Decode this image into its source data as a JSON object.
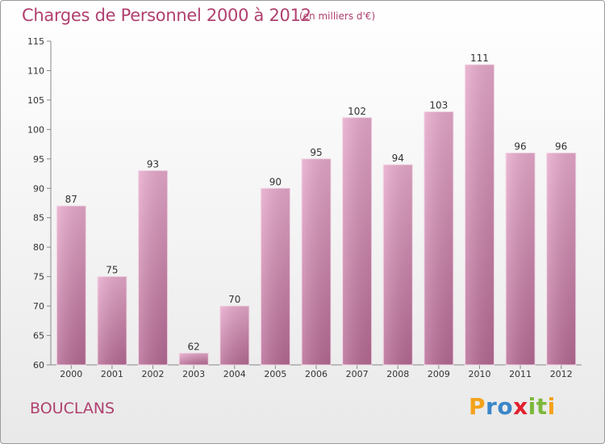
{
  "chart_data": {
    "type": "bar",
    "title": "Charges de Personnel 2000 à 2012",
    "subtitle": "(en milliers d'€)",
    "categories": [
      "2000",
      "2001",
      "2002",
      "2003",
      "2004",
      "2005",
      "2006",
      "2007",
      "2008",
      "2009",
      "2010",
      "2011",
      "2012"
    ],
    "values": [
      87,
      75,
      93,
      62,
      70,
      90,
      95,
      102,
      94,
      103,
      111,
      96,
      96
    ],
    "ylim": [
      60,
      115
    ],
    "yticks": [
      60,
      65,
      70,
      75,
      80,
      85,
      90,
      95,
      100,
      105,
      110,
      115
    ],
    "grid": false,
    "bar_color": "#d98bb5"
  },
  "commune": "BOUCLANS",
  "brand": {
    "letters": [
      "P",
      "r",
      "o",
      "x",
      "i",
      "t",
      "i"
    ],
    "colors": [
      "#f3a21b",
      "#3a86c8",
      "#3a86c8",
      "#e2202e",
      "#7cb83b",
      "#7cb83b",
      "#f3a21b"
    ]
  }
}
